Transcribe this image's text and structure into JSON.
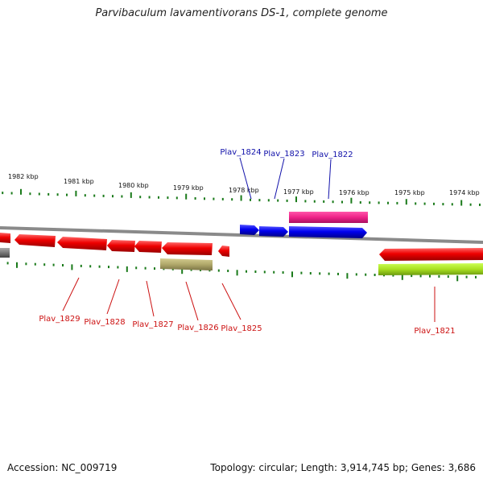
{
  "title": "Parvibaculum lavamentivorans DS-1, complete genome",
  "footer": {
    "accession": "Accession: NC_009719",
    "summary": "Topology: circular; Length: 3,914,745 bp; Genes: 3,686"
  },
  "scale_labels": [
    "1982 kbp",
    "1981 kbp",
    "1980 kbp",
    "1979 kbp",
    "1978 kbp",
    "1977 kbp",
    "1976 kbp",
    "1975 kbp",
    "1974 kbp"
  ],
  "gene_labels_top": [
    "Plav_1824",
    "Plav_1823",
    "Plav_1822"
  ],
  "gene_labels_bottom": [
    "Plav_1829",
    "Plav_1828",
    "Plav_1827",
    "Plav_1826",
    "Plav_1825",
    "Plav_1821"
  ],
  "colors": {
    "forward_gene": "#0000ee",
    "reverse_gene": "#ee0000",
    "magenta_feature": "#ee2288",
    "olive_feature": "#b0a86a",
    "lime_feature": "#a8e020",
    "gray_feature": "#777777",
    "backbone": "#888888",
    "tick": "#1a7a1a",
    "top_label": "#1111aa",
    "bottom_label": "#cc1111"
  }
}
